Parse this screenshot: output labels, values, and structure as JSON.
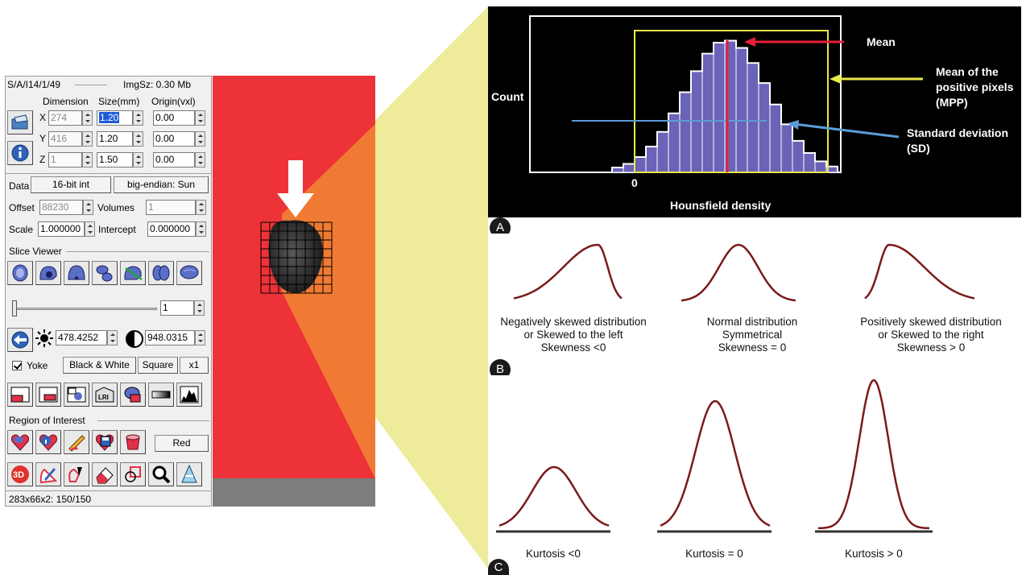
{
  "panel": {
    "header_left": "S/A/I14/1/49",
    "header_right": "ImgSz: 0.30 Mb",
    "col_headers": [
      "Dimension",
      "Size(mm)",
      "Origin(vxl)"
    ],
    "rows": [
      {
        "axis": "X",
        "dim": "274",
        "size": "1.20",
        "origin": "0.00"
      },
      {
        "axis": "Y",
        "dim": "416",
        "size": "1.20",
        "origin": "0.00"
      },
      {
        "axis": "Z",
        "dim": "1",
        "size": "1.50",
        "origin": "0.00"
      }
    ],
    "data_label": "Data",
    "data_type": "16-bit int",
    "endian": "big-endian: Sun",
    "offset_label": "Offset",
    "offset_value": "88230",
    "volumes_label": "Volumes",
    "volumes_value": "1",
    "scale_label": "Scale",
    "scale_value": "1.000000",
    "intercept_label": "Intercept",
    "intercept_value": "0.000000",
    "slice_viewer_label": "Slice Viewer",
    "slice_value": "1",
    "slider_fraction": 0.0,
    "brightness_value": "478.4252",
    "contrast_value": "948.0315",
    "yoke_label": "Yoke",
    "colormap": "Black & White",
    "square_label": "Square",
    "zoom_label": "x1",
    "roi_label": "Region of Interest",
    "roi_color": "Red",
    "status": "283x66x2: 150/150",
    "icons_row1": [
      "brain-axial-icon",
      "brain-sagittal-icon",
      "brain-coronal-icon",
      "brain-render-icon",
      "brain-line-icon",
      "brain-top-icon",
      "brain-side-icon"
    ],
    "icons_row2": [
      "layout-one-icon",
      "layout-two-icon",
      "layout-three-icon",
      "layout-mosaic-icon",
      "layout-overlay-icon",
      "gradient-icon",
      "histogram-icon"
    ],
    "icons_row3": [
      "roi-heart-icon",
      "roi-info-icon",
      "roi-pencil-icon",
      "roi-save-icon",
      "roi-bucket-icon"
    ],
    "icons_row4": [
      "3d-icon",
      "pen-draw-icon",
      "freehand-icon",
      "eraser-icon",
      "roi-shapes-icon",
      "magnifier-icon",
      "cone-icon"
    ]
  },
  "panelA": {
    "badge": "A",
    "y_label": "Count",
    "x_label": "Hounsfield density",
    "x_zero": "0",
    "ann_mean": "Mean",
    "ann_mpp": [
      "Mean of the",
      "positive pixels",
      "(MPP)"
    ],
    "ann_sd": [
      "Standard deviation",
      "(SD)"
    ],
    "colors": {
      "mean": "#e8203a",
      "mpp": "#e8e84a",
      "sd": "#5b9bd5",
      "bars": "#6a63b8"
    }
  },
  "panelB": {
    "badge": "B",
    "captions": [
      [
        "Negatively skewed distribution",
        "or Skewed to the left",
        "Skewness <0"
      ],
      [
        "Normal distribution",
        "Symmetrical",
        "Skewness = 0"
      ],
      [
        "Positively skewed distribution",
        "or Skewed to the right",
        "Skewness > 0"
      ]
    ]
  },
  "panelC": {
    "badge": "C",
    "captions": [
      "Kurtosis <0",
      "Kurtosis = 0",
      "Kurtosis > 0"
    ]
  },
  "curve_color": "#7a1a1a",
  "scan_color": "#ee3338",
  "wedge_orange": "#f07a33",
  "wedge_yellow": "#eeeb9a"
}
